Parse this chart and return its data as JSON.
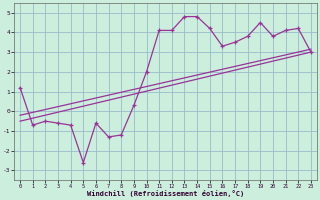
{
  "xlabel": "Windchill (Refroidissement éolien,°C)",
  "bg_color": "#cceedd",
  "line_color": "#993399",
  "grid_color": "#99bbcc",
  "xlim": [
    -0.5,
    23.5
  ],
  "ylim": [
    -3.5,
    5.5
  ],
  "xticks": [
    0,
    1,
    2,
    3,
    4,
    5,
    6,
    7,
    8,
    9,
    10,
    11,
    12,
    13,
    14,
    15,
    16,
    17,
    18,
    19,
    20,
    21,
    22,
    23
  ],
  "yticks": [
    -3,
    -2,
    -1,
    0,
    1,
    2,
    3,
    4,
    5
  ],
  "main_x": [
    0,
    1,
    2,
    3,
    4,
    5,
    6,
    7,
    8,
    9,
    10,
    11,
    12,
    13,
    14,
    15,
    16,
    17,
    18,
    19,
    20,
    21,
    22,
    23
  ],
  "main_y": [
    1.2,
    -0.7,
    -0.5,
    -0.6,
    -0.7,
    -2.6,
    -0.6,
    -1.3,
    -1.2,
    0.3,
    2.0,
    4.1,
    4.1,
    4.8,
    4.8,
    4.2,
    3.3,
    3.5,
    3.8,
    4.5,
    3.8,
    4.1,
    4.2,
    3.0
  ],
  "trend1_x": [
    0,
    23
  ],
  "trend1_y": [
    -0.2,
    3.15
  ],
  "trend2_x": [
    0,
    23
  ],
  "trend2_y": [
    -0.5,
    3.0
  ]
}
